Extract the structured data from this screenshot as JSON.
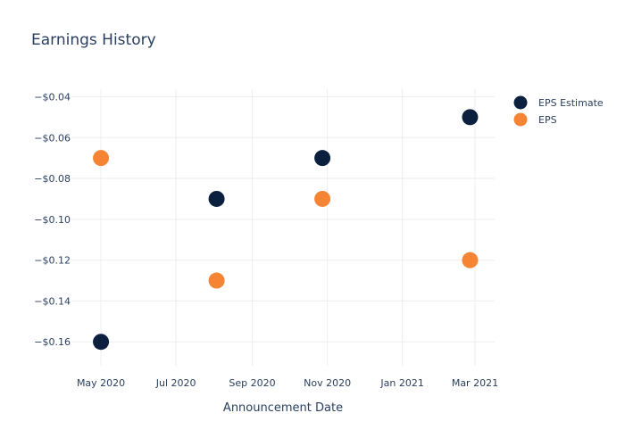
{
  "chart_data": {
    "type": "scatter",
    "title": "Earnings History",
    "xlabel": "Announcement Date",
    "ylabel": "",
    "x_ticks": [
      {
        "date": "2020-05-01",
        "label": "May 2020"
      },
      {
        "date": "2020-07-01",
        "label": "Jul 2020"
      },
      {
        "date": "2020-09-01",
        "label": "Sep 2020"
      },
      {
        "date": "2020-11-01",
        "label": "Nov 2020"
      },
      {
        "date": "2021-01-01",
        "label": "Jan 2021"
      },
      {
        "date": "2021-03-01",
        "label": "Mar 2021"
      }
    ],
    "y_ticks": [
      {
        "value": -0.04,
        "label": "−$0.04"
      },
      {
        "value": -0.06,
        "label": "−$0.06"
      },
      {
        "value": -0.08,
        "label": "−$0.08"
      },
      {
        "value": -0.1,
        "label": "−$0.10"
      },
      {
        "value": -0.12,
        "label": "−$0.12"
      },
      {
        "value": -0.14,
        "label": "−$0.14"
      },
      {
        "value": -0.16,
        "label": "−$0.16"
      }
    ],
    "xlim": [
      "2020-04-07",
      "2021-03-17"
    ],
    "ylim": [
      -0.1717,
      -0.0363
    ],
    "grid": true,
    "legend_position": "top-right",
    "series": [
      {
        "name": "EPS Estimate",
        "color": "#0b1f3f",
        "points": [
          {
            "x": "2020-05-01",
            "y": -0.16
          },
          {
            "x": "2020-08-03",
            "y": -0.09
          },
          {
            "x": "2020-10-28",
            "y": -0.07
          },
          {
            "x": "2021-02-25",
            "y": -0.05
          }
        ]
      },
      {
        "name": "EPS",
        "color": "#f58435",
        "points": [
          {
            "x": "2020-05-01",
            "y": -0.07
          },
          {
            "x": "2020-08-03",
            "y": -0.13
          },
          {
            "x": "2020-10-28",
            "y": -0.09
          },
          {
            "x": "2021-02-25",
            "y": -0.12
          }
        ]
      }
    ]
  }
}
